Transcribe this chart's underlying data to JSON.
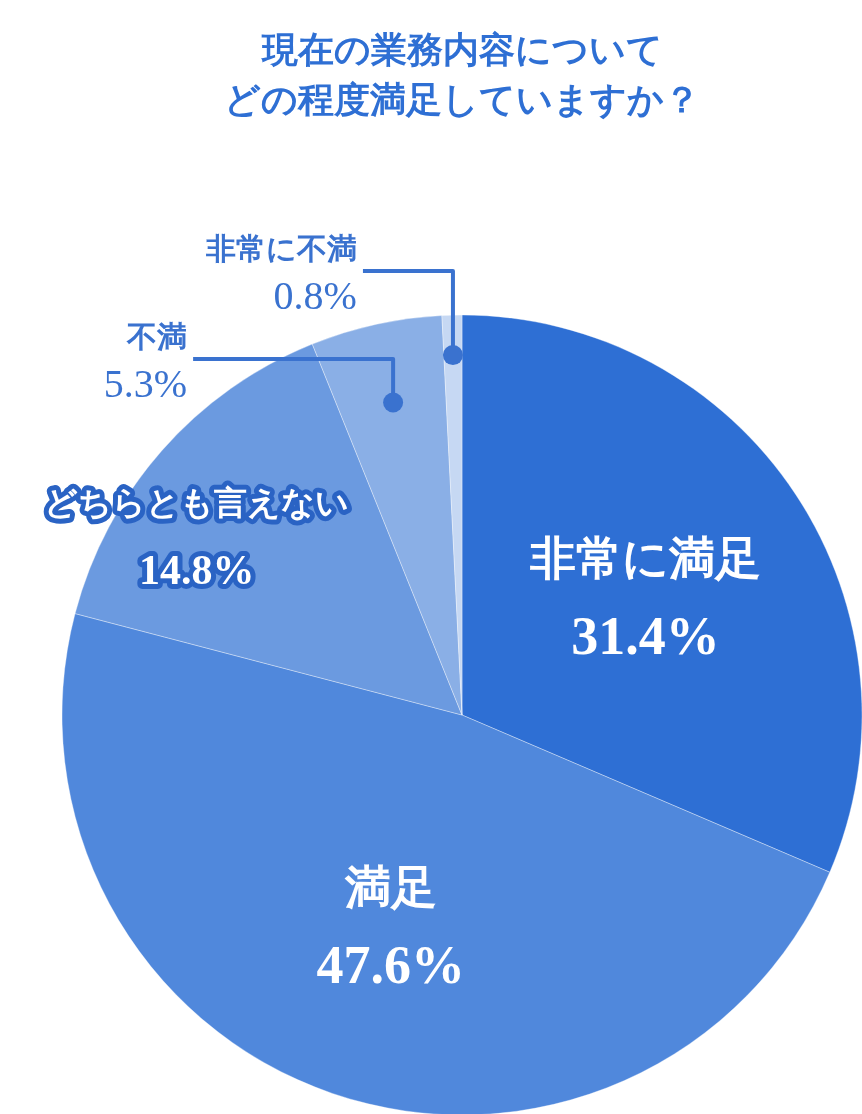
{
  "chart_data": {
    "type": "pie",
    "title": "現在の業務内容について",
    "subtitle": "どの程度満足していますか？",
    "categories": [
      "非常に満足",
      "満足",
      "どちらとも言えない",
      "不満",
      "非常に不満"
    ],
    "values": [
      31.4,
      47.6,
      14.8,
      5.3,
      0.8
    ],
    "value_labels": [
      "31.4%",
      "47.6%",
      "14.8%",
      "5.3%",
      "0.8%"
    ],
    "colors": [
      "#2e6fd4",
      "#5088dc",
      "#6b9ae0",
      "#8aafe6",
      "#c6d8f3"
    ]
  }
}
